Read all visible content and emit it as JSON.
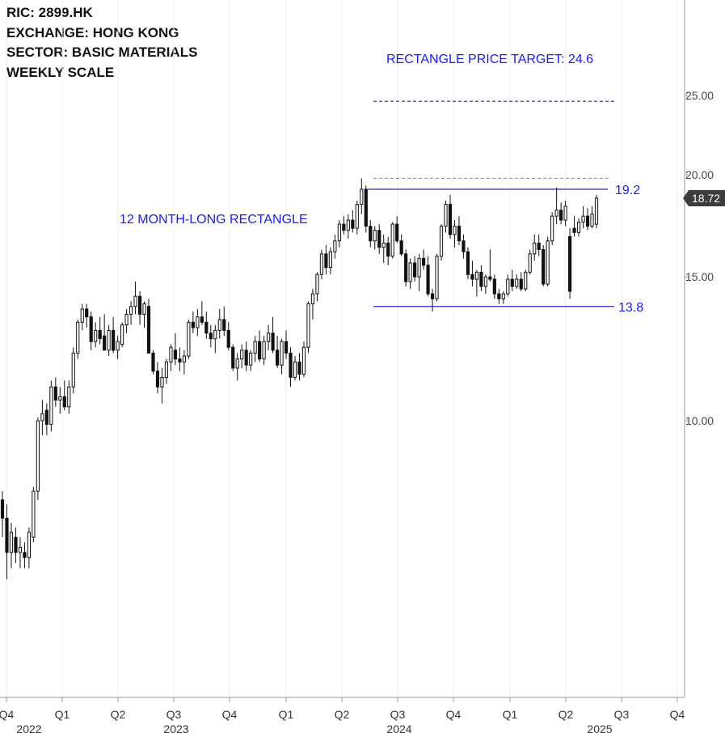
{
  "info": {
    "ric": "RIC:  2899.HK",
    "exchange": "EXCHANGE: HONG KONG",
    "sector": "SECTOR:  BASIC MATERIALS",
    "scale": "WEEKLY SCALE"
  },
  "chart_data": {
    "type": "candlestick",
    "timeframe": "weekly",
    "y_scale": "log",
    "ylim": [
      6.3,
      28
    ],
    "y_ticks": [
      "10.00",
      "15.00",
      "20.00",
      "25.00"
    ],
    "last_price": "18.72",
    "x_quarter_labels": [
      "Q4",
      "Q1",
      "Q2",
      "Q3",
      "Q4",
      "Q1",
      "Q2",
      "Q3",
      "Q4",
      "Q1",
      "Q2",
      "Q3",
      "Q4"
    ],
    "x_year_labels": [
      "2022",
      "2023",
      "2024",
      "2025"
    ],
    "annotations": {
      "pattern_label": "12 MONTH-LONG RECTANGLE",
      "target_label": "RECTANGLE PRICE TARGET: 24.6",
      "upper_boundary": 19.2,
      "upper_boundary_label": "19.2",
      "lower_boundary": 13.8,
      "lower_boundary_label": "13.8",
      "target": 24.6,
      "prior_high": 19.8
    },
    "candles": [
      [
        8.0,
        8.2,
        7.2,
        7.6
      ],
      [
        7.6,
        7.9,
        6.4,
        6.9
      ],
      [
        6.9,
        7.5,
        6.6,
        7.3
      ],
      [
        7.2,
        7.4,
        6.7,
        6.9
      ],
      [
        6.9,
        7.2,
        6.6,
        7.0
      ],
      [
        6.9,
        7.1,
        6.6,
        6.8
      ],
      [
        6.8,
        7.4,
        6.6,
        7.3
      ],
      [
        7.2,
        8.3,
        7.1,
        8.2
      ],
      [
        8.2,
        10.1,
        8.0,
        10.0
      ],
      [
        10.0,
        10.6,
        9.6,
        10.2
      ],
      [
        10.3,
        10.5,
        9.6,
        9.9
      ],
      [
        9.9,
        11.2,
        9.7,
        11.0
      ],
      [
        11.0,
        11.3,
        10.4,
        10.6
      ],
      [
        10.6,
        11.0,
        10.2,
        10.7
      ],
      [
        10.7,
        11.2,
        10.3,
        10.4
      ],
      [
        10.4,
        11.2,
        10.2,
        11.0
      ],
      [
        11.0,
        12.3,
        10.8,
        12.1
      ],
      [
        12.1,
        13.3,
        11.9,
        13.2
      ],
      [
        13.2,
        13.9,
        12.9,
        13.7
      ],
      [
        13.7,
        13.9,
        13.0,
        13.4
      ],
      [
        13.4,
        13.6,
        12.2,
        12.5
      ],
      [
        12.5,
        13.2,
        12.3,
        12.9
      ],
      [
        12.9,
        13.4,
        12.4,
        12.6
      ],
      [
        12.7,
        13.5,
        12.2,
        12.2
      ],
      [
        12.2,
        13.1,
        12.0,
        12.9
      ],
      [
        12.9,
        13.4,
        12.1,
        12.2
      ],
      [
        12.2,
        12.7,
        11.9,
        12.5
      ],
      [
        12.4,
        13.2,
        12.3,
        13.1
      ],
      [
        13.1,
        13.7,
        12.8,
        13.5
      ],
      [
        13.5,
        14.0,
        13.1,
        13.8
      ],
      [
        13.8,
        14.8,
        13.5,
        14.2
      ],
      [
        14.2,
        14.4,
        13.1,
        13.5
      ],
      [
        13.5,
        14.0,
        13.0,
        13.9
      ],
      [
        13.8,
        14.1,
        12.1,
        12.1
      ],
      [
        12.1,
        12.2,
        11.4,
        11.5
      ],
      [
        11.5,
        11.8,
        10.8,
        11.0
      ],
      [
        11.0,
        11.6,
        10.5,
        11.3
      ],
      [
        11.3,
        11.9,
        11.1,
        11.8
      ],
      [
        11.8,
        12.4,
        11.5,
        12.3
      ],
      [
        12.2,
        12.8,
        11.7,
        11.9
      ],
      [
        11.9,
        12.3,
        11.5,
        11.8
      ],
      [
        11.8,
        12.2,
        11.4,
        12.0
      ],
      [
        12.0,
        13.3,
        11.9,
        13.2
      ],
      [
        13.2,
        13.6,
        12.8,
        13.0
      ],
      [
        13.0,
        13.7,
        12.7,
        13.4
      ],
      [
        13.4,
        14.0,
        13.1,
        13.2
      ],
      [
        13.2,
        13.6,
        12.6,
        12.8
      ],
      [
        12.8,
        13.1,
        12.3,
        12.6
      ],
      [
        12.6,
        13.1,
        12.1,
        12.9
      ],
      [
        12.9,
        13.7,
        12.6,
        13.3
      ],
      [
        13.3,
        13.8,
        12.7,
        12.9
      ],
      [
        12.9,
        13.2,
        12.2,
        12.3
      ],
      [
        12.3,
        12.4,
        11.5,
        11.6
      ],
      [
        11.6,
        12.1,
        11.2,
        11.9
      ],
      [
        11.9,
        12.4,
        11.6,
        12.2
      ],
      [
        12.2,
        12.5,
        11.5,
        11.7
      ],
      [
        11.7,
        12.2,
        11.5,
        12.1
      ],
      [
        12.1,
        12.7,
        11.8,
        12.5
      ],
      [
        12.5,
        12.9,
        11.8,
        11.9
      ],
      [
        11.9,
        12.7,
        11.7,
        12.5
      ],
      [
        12.5,
        13.1,
        12.2,
        12.8
      ],
      [
        12.8,
        13.4,
        12.1,
        12.2
      ],
      [
        12.2,
        12.7,
        11.6,
        11.7
      ],
      [
        11.7,
        12.6,
        11.4,
        12.5
      ],
      [
        12.5,
        12.9,
        11.9,
        12.1
      ],
      [
        12.1,
        12.3,
        11.0,
        11.3
      ],
      [
        11.3,
        12.0,
        11.2,
        11.8
      ],
      [
        11.8,
        12.1,
        11.2,
        11.4
      ],
      [
        11.4,
        12.5,
        11.3,
        12.3
      ],
      [
        12.3,
        14.0,
        12.1,
        13.9
      ],
      [
        13.9,
        14.5,
        13.3,
        14.3
      ],
      [
        14.3,
        15.2,
        14.0,
        15.1
      ],
      [
        15.1,
        16.2,
        14.9,
        16.0
      ],
      [
        16.0,
        16.4,
        15.1,
        15.4
      ],
      [
        15.4,
        16.3,
        15.1,
        16.1
      ],
      [
        16.1,
        16.9,
        15.8,
        16.6
      ],
      [
        16.6,
        17.6,
        16.3,
        17.4
      ],
      [
        17.4,
        17.8,
        16.9,
        17.1
      ],
      [
        17.1,
        17.9,
        16.7,
        17.6
      ],
      [
        17.6,
        18.1,
        17.0,
        17.2
      ],
      [
        17.2,
        18.6,
        16.9,
        18.4
      ],
      [
        18.4,
        19.8,
        17.9,
        19.2
      ],
      [
        19.2,
        19.4,
        17.0,
        17.3
      ],
      [
        17.3,
        17.6,
        16.3,
        16.6
      ],
      [
        16.6,
        17.3,
        16.2,
        17.1
      ],
      [
        17.1,
        17.4,
        16.0,
        16.3
      ],
      [
        16.3,
        16.9,
        15.6,
        16.5
      ],
      [
        16.5,
        16.8,
        15.5,
        15.9
      ],
      [
        15.9,
        17.5,
        15.8,
        17.4
      ],
      [
        17.4,
        17.8,
        16.5,
        16.6
      ],
      [
        16.6,
        16.9,
        15.9,
        16.0
      ],
      [
        16.0,
        16.2,
        14.6,
        14.8
      ],
      [
        14.8,
        15.8,
        14.5,
        15.6
      ],
      [
        15.6,
        15.9,
        14.8,
        15.0
      ],
      [
        15.0,
        16.0,
        14.4,
        15.8
      ],
      [
        15.8,
        16.2,
        15.3,
        15.5
      ],
      [
        15.5,
        15.9,
        14.2,
        14.3
      ],
      [
        14.3,
        14.5,
        13.6,
        14.1
      ],
      [
        14.1,
        16.0,
        14.0,
        15.9
      ],
      [
        15.9,
        17.4,
        15.7,
        17.3
      ],
      [
        17.3,
        18.6,
        17.0,
        18.4
      ],
      [
        18.4,
        18.9,
        16.7,
        16.9
      ],
      [
        16.9,
        17.6,
        16.3,
        17.3
      ],
      [
        17.3,
        17.8,
        16.4,
        16.6
      ],
      [
        16.6,
        16.9,
        15.8,
        16.1
      ],
      [
        16.1,
        16.3,
        14.9,
        15.1
      ],
      [
        15.1,
        15.7,
        14.6,
        14.9
      ],
      [
        14.9,
        15.3,
        14.2,
        15.2
      ],
      [
        15.2,
        15.5,
        14.4,
        14.6
      ],
      [
        14.6,
        15.1,
        14.3,
        15.0
      ],
      [
        15.0,
        16.2,
        14.8,
        14.9
      ],
      [
        14.9,
        15.1,
        14.1,
        14.3
      ],
      [
        14.3,
        14.5,
        13.9,
        14.1
      ],
      [
        14.1,
        14.4,
        13.9,
        14.3
      ],
      [
        14.3,
        15.1,
        14.2,
        14.9
      ],
      [
        14.9,
        15.3,
        14.4,
        14.6
      ],
      [
        14.6,
        15.1,
        14.5,
        14.9
      ],
      [
        14.9,
        15.2,
        14.4,
        14.5
      ],
      [
        14.5,
        15.3,
        14.4,
        15.2
      ],
      [
        15.2,
        16.2,
        15.1,
        16.0
      ],
      [
        16.0,
        16.9,
        15.7,
        16.5
      ],
      [
        16.5,
        16.9,
        15.9,
        16.2
      ],
      [
        16.2,
        16.4,
        14.6,
        14.7
      ],
      [
        14.7,
        16.8,
        14.6,
        16.6
      ],
      [
        16.6,
        18.0,
        16.4,
        17.8
      ],
      [
        17.8,
        19.3,
        17.4,
        18.1
      ],
      [
        18.1,
        18.5,
        17.4,
        17.6
      ],
      [
        17.6,
        18.6,
        17.3,
        18.3
      ],
      [
        16.8,
        17.2,
        14.1,
        14.4
      ],
      [
        17.2,
        17.8,
        16.8,
        17.0
      ],
      [
        17.0,
        17.7,
        16.8,
        17.5
      ],
      [
        17.5,
        18.3,
        17.2,
        17.8
      ],
      [
        17.8,
        18.2,
        17.1,
        17.3
      ],
      [
        17.3,
        18.3,
        17.2,
        17.9
      ],
      [
        17.4,
        18.9,
        17.2,
        18.72
      ]
    ]
  }
}
